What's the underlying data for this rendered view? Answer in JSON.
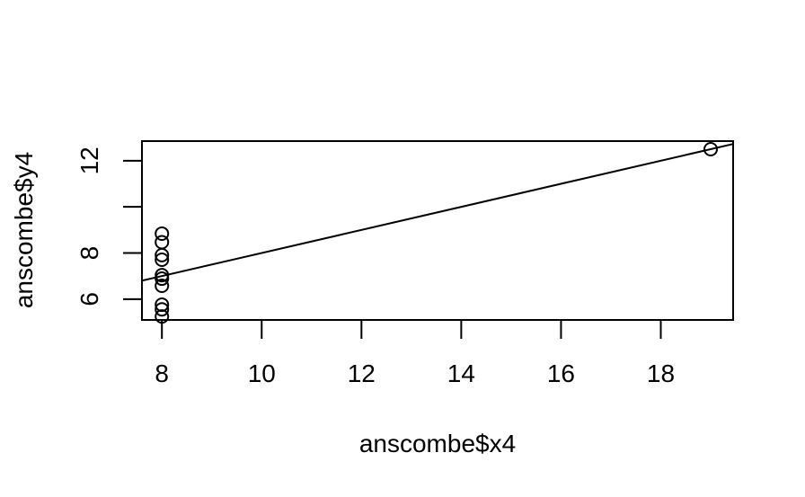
{
  "chart_data": {
    "type": "scatter",
    "title": "",
    "xlabel": "anscombe$x4",
    "ylabel": "anscombe$y4",
    "xlim": [
      7.6,
      19.45
    ],
    "ylim": [
      5.1,
      12.85
    ],
    "x_ticks": [
      8,
      10,
      12,
      14,
      16,
      18
    ],
    "x_tick_labels": [
      "8",
      "10",
      "12",
      "14",
      "16",
      "18"
    ],
    "y_ticks": [
      6,
      8,
      10,
      12
    ],
    "y_tick_labels": [
      "6",
      "8",
      "",
      "12"
    ],
    "grid": false,
    "legend": "none",
    "x": [
      8,
      8,
      8,
      8,
      8,
      8,
      8,
      19,
      8,
      8,
      8
    ],
    "y": [
      6.58,
      5.76,
      7.71,
      8.84,
      8.47,
      7.04,
      5.25,
      12.5,
      5.56,
      7.91,
      6.89
    ],
    "regression_line": {
      "intercept": 3.0017,
      "slope": 0.4999
    }
  }
}
